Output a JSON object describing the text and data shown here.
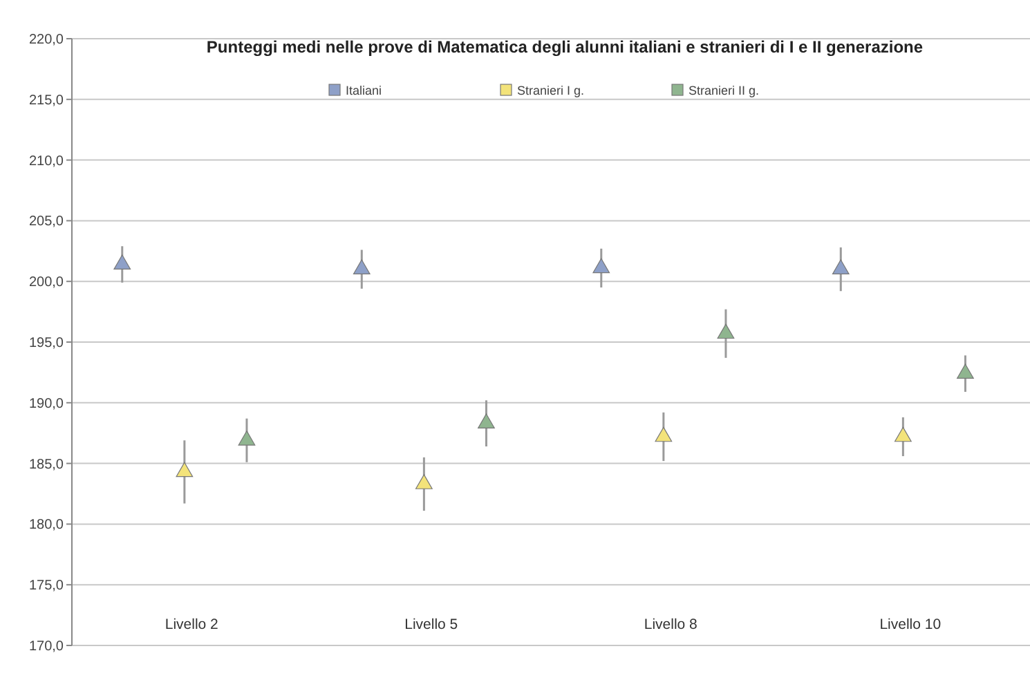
{
  "chart_data": {
    "type": "scatter",
    "title": "Punteggi medi nelle prove di Matematica degli alunni italiani e stranieri di I e II generazione",
    "categories": [
      "Livello 2",
      "Livello 5",
      "Livello 8",
      "Livello 10"
    ],
    "series": [
      {
        "name": "Italiani",
        "color": "#8ea0c8",
        "values": [
          201.4,
          201.0,
          201.1,
          201.0
        ],
        "errors": [
          1.5,
          1.6,
          1.6,
          1.8
        ]
      },
      {
        "name": "Stranieri I g.",
        "color": "#f3e37a",
        "values": [
          184.3,
          183.3,
          187.2,
          187.2
        ],
        "errors": [
          2.6,
          2.2,
          2.0,
          1.6
        ]
      },
      {
        "name": "Stranieri II g.",
        "color": "#8fb58f",
        "values": [
          186.9,
          188.3,
          195.7,
          192.4
        ],
        "errors": [
          1.8,
          1.9,
          2.0,
          1.5
        ]
      }
    ],
    "ylim": [
      170,
      220
    ],
    "yticks": [
      {
        "value": 170,
        "label": "170,0"
      },
      {
        "value": 175,
        "label": "175,0"
      },
      {
        "value": 180,
        "label": "180,0"
      },
      {
        "value": 185,
        "label": "185,0"
      },
      {
        "value": 190,
        "label": "190,0"
      },
      {
        "value": 195,
        "label": "195,0"
      },
      {
        "value": 200,
        "label": "200,0"
      },
      {
        "value": 205,
        "label": "205,0"
      },
      {
        "value": 210,
        "label": "210,0"
      },
      {
        "value": 215,
        "label": "215,0"
      },
      {
        "value": 220,
        "label": "220,0"
      }
    ],
    "grid": "y",
    "legend": "top",
    "marker": "triangle"
  }
}
